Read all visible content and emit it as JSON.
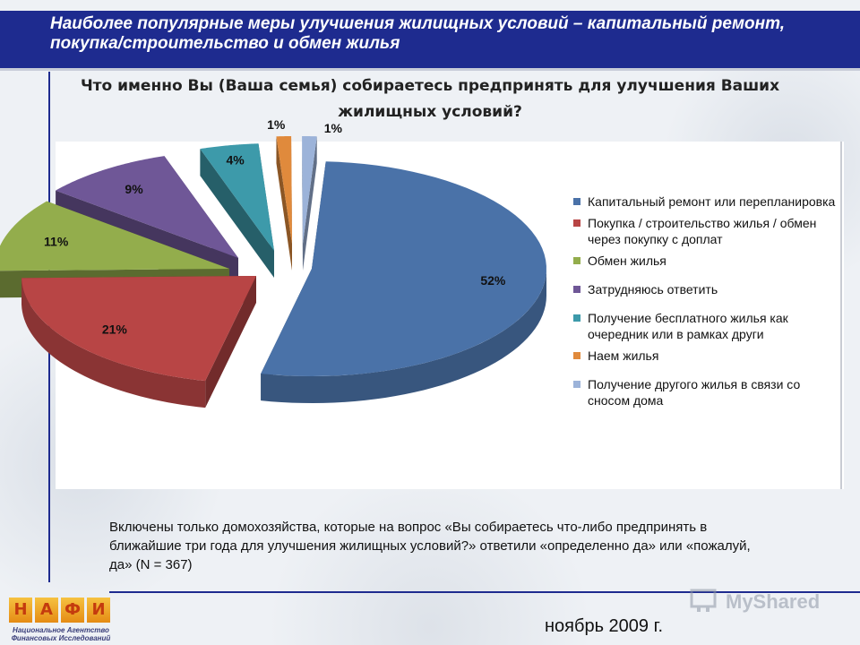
{
  "header": {
    "title": "Наиболее популярные меры улучшения жилищных условий – капитальный ремонт, покупка/строительство и обмен жилья"
  },
  "question": "Что именно Вы (Ваша семья) собираетесь предпринять для улучшения Ваших жилищных условий?",
  "chart_data": {
    "type": "pie",
    "title": "",
    "categories": [
      "Капитальный ремонт или перепланировка",
      "Покупка / строительство жилья / обмен через покупку с доплат",
      "Обмен жилья",
      "Затрудняюсь ответить",
      "Получение бесплатного жилья как очередник или в рамках други",
      "Наем жилья",
      "Получение другого жилья в связи со сносом дома"
    ],
    "values": [
      52,
      21,
      11,
      9,
      4,
      1,
      1
    ],
    "labels": [
      "52%",
      "21%",
      "11%",
      "9%",
      "4%",
      "1%",
      "1%"
    ],
    "colors": [
      "#4a72a8",
      "#b84545",
      "#93ad4c",
      "#6f5797",
      "#3d9aaa",
      "#e08a3c",
      "#9cb3d9"
    ],
    "style": "exploded-3d",
    "legend_position": "right"
  },
  "note": "Включены только домохозяйства, которые на вопрос «Вы собираетесь что-либо предпринять в ближайшие три года для улучшения жилищных условий?» ответили «определенно да» или «пожалуй, да» (N = 367)",
  "footer": {
    "date": "ноябрь 2009 г.",
    "logo_letters": [
      "Н",
      "А",
      "Ф",
      "И"
    ],
    "logo_subtitle": "Национальное Агентство Финансовых Исследований",
    "watermark": "MyShared"
  }
}
